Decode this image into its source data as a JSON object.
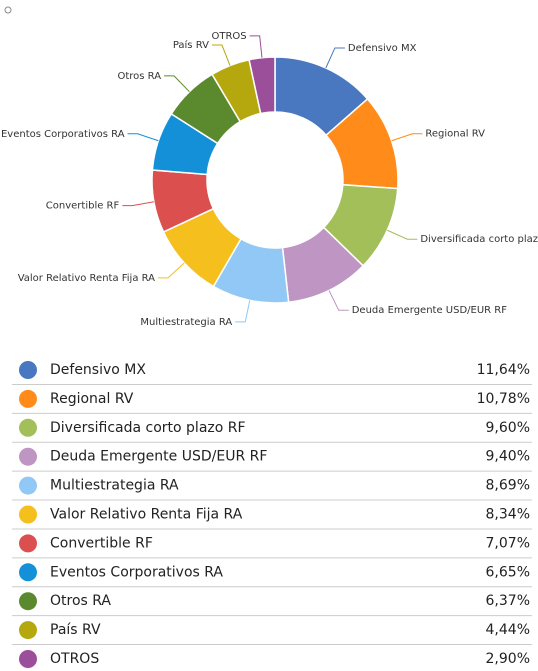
{
  "chart_data": {
    "type": "donut",
    "categories": [
      "Defensivo MX",
      "Regional RV",
      "Diversificada corto plazo RF",
      "Deuda Emergente USD/EUR RF",
      "Multiestrategia RA",
      "Valor Relativo Renta Fija RA",
      "Convertible RF",
      "Eventos Corporativos RA",
      "Otros RA",
      "País RV",
      "OTROS"
    ],
    "values": [
      11.64,
      10.78,
      9.6,
      9.4,
      8.69,
      8.34,
      7.07,
      6.65,
      6.37,
      4.44,
      2.9
    ],
    "value_labels": [
      "11,64%",
      "10,78%",
      "9,60%",
      "9,40%",
      "8,69%",
      "8,34%",
      "7,07%",
      "6,65%",
      "6,37%",
      "4,44%",
      "2,90%"
    ],
    "colors": [
      "#4a78c0",
      "#ff8c1a",
      "#a3bf5a",
      "#bf95c4",
      "#91c8f5",
      "#f5c01e",
      "#dc4f4f",
      "#1390d8",
      "#5b8a2e",
      "#b5a80f",
      "#9b4f9b"
    ]
  }
}
